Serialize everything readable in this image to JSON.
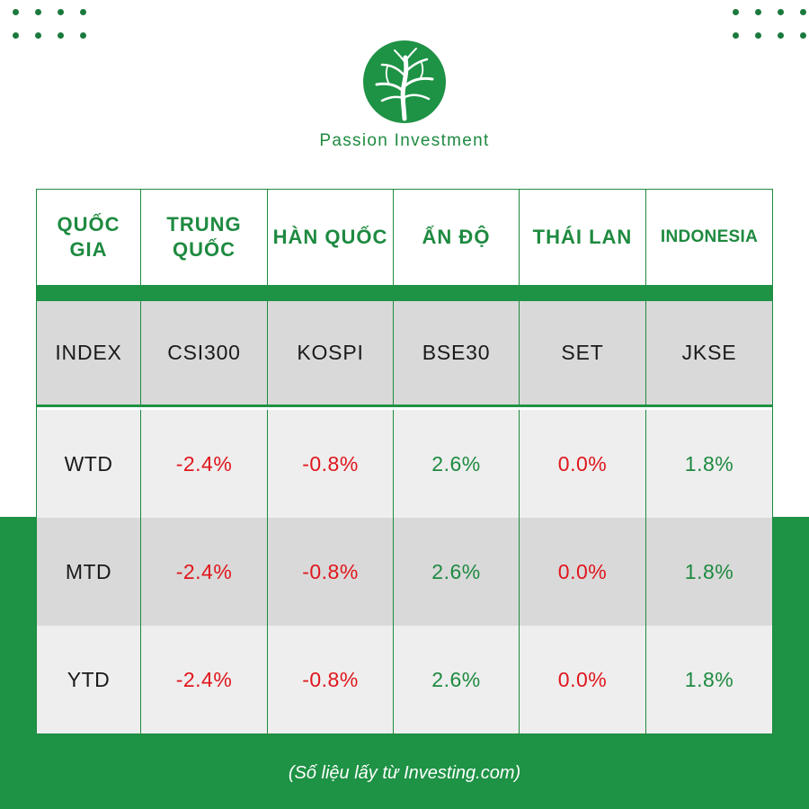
{
  "brand": {
    "name": "Passion Investment",
    "logo_icon": "tree-icon",
    "color": "#1e8a40"
  },
  "colors": {
    "green": "#1e9245",
    "negative": "#e0161c",
    "positive": "#1e8a40",
    "gray_row": "#d9d9d9",
    "light_row": "#eeeeee"
  },
  "table": {
    "headers": [
      "QUỐC GIA",
      "TRUNG QUỐC",
      "HÀN QUỐC",
      "ẤN ĐỘ",
      "THÁI LAN",
      "INDONESIA"
    ],
    "index_row": [
      "INDEX",
      "CSI300",
      "KOSPI",
      "BSE30",
      "SET",
      "JKSE"
    ],
    "rows": [
      {
        "label": "WTD",
        "values": [
          "-2.4%",
          "-0.8%",
          "2.6%",
          "0.0%",
          "1.8%"
        ]
      },
      {
        "label": "MTD",
        "values": [
          "-2.4%",
          "-0.8%",
          "2.6%",
          "0.0%",
          "1.8%"
        ]
      },
      {
        "label": "YTD",
        "values": [
          "-2.4%",
          "-0.8%",
          "2.6%",
          "0.0%",
          "1.8%"
        ]
      }
    ]
  },
  "source_note": "(Số liệu lấy từ Investing.com)"
}
